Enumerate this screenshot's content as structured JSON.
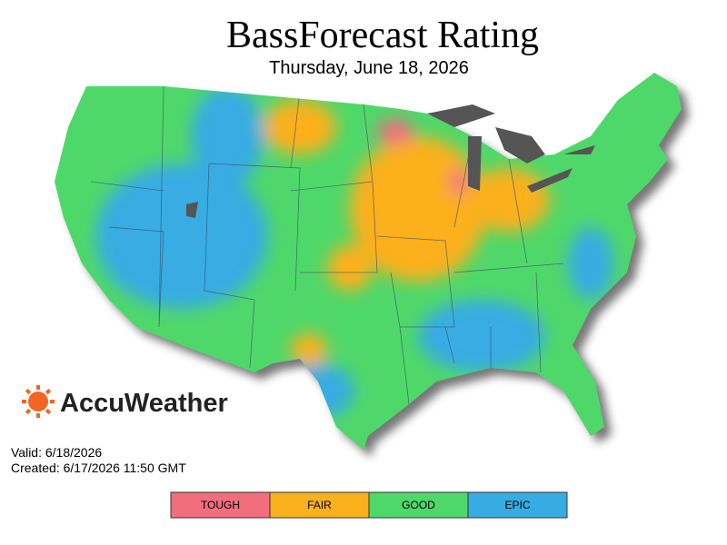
{
  "header": {
    "title": "BassForecast Rating",
    "subtitle": "Thursday, June 18, 2026"
  },
  "logo": {
    "text": "AccuWeather"
  },
  "footer": {
    "valid": "Valid: 6/18/2026",
    "created": "Created: 6/17/2026 11:50 GMT"
  },
  "legend": {
    "items": [
      {
        "label": "TOUGH",
        "color": "#f26d7d"
      },
      {
        "label": "FAIR",
        "color": "#fbb01e"
      },
      {
        "label": "GOOD",
        "color": "#4fd86a"
      },
      {
        "label": "EPIC",
        "color": "#37ace3"
      }
    ]
  }
}
